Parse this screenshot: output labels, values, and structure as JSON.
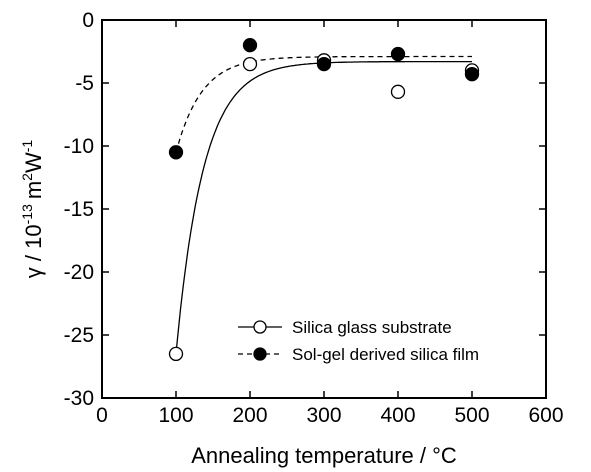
{
  "chart_data": {
    "type": "scatter",
    "xlabel": "Annealing temperature / °C",
    "ylabel": {
      "gamma": "γ",
      "slash": " / ",
      "base": "10",
      "exp": "-13",
      "unit_m": "m",
      "exp_m": "2",
      "unit_w": "W",
      "exp_w": "-1"
    },
    "xlim": [
      0,
      600
    ],
    "ylim": [
      -30,
      0
    ],
    "x_ticks": [
      0,
      100,
      200,
      300,
      400,
      500,
      600
    ],
    "y_ticks": [
      0,
      -5,
      -10,
      -15,
      -20,
      -25,
      -30
    ],
    "x_tick_labels": [
      "0",
      "100",
      "200",
      "300",
      "400",
      "500",
      "600"
    ],
    "y_tick_labels": [
      "0",
      "-5",
      "-10",
      "-15",
      "-20",
      "-25",
      "-30"
    ],
    "grid": false,
    "legend_position": "bottom-right",
    "series": [
      {
        "name": "Silica glass substrate",
        "marker": "open-circle",
        "line": "solid",
        "x": [
          100,
          200,
          300,
          400,
          500
        ],
        "y": [
          -26.5,
          -3.5,
          -3.2,
          -5.7,
          -4.0
        ]
      },
      {
        "name": "Sol-gel derived silica film",
        "marker": "filled-circle",
        "line": "dashed",
        "x": [
          100,
          200,
          300,
          400,
          500
        ],
        "y": [
          -10.5,
          -2.0,
          -3.5,
          -2.7,
          -4.3
        ]
      }
    ]
  }
}
